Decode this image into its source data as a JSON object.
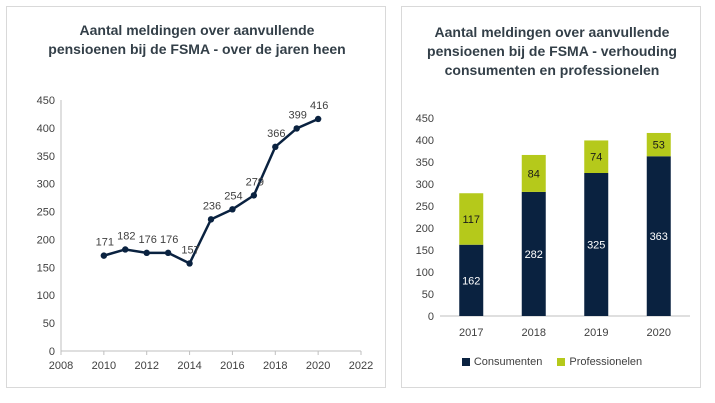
{
  "chart_data": [
    {
      "type": "line",
      "title": "Aantal meldingen over aanvullende pensioenen bij de FSMA - over de jaren heen",
      "x": [
        2010,
        2011,
        2012,
        2013,
        2014,
        2015,
        2016,
        2017,
        2018,
        2019,
        2020
      ],
      "series": [
        {
          "values": [
            171,
            182,
            176,
            176,
            157,
            236,
            254,
            279,
            366,
            399,
            416
          ],
          "color": "#0a2240"
        }
      ],
      "xlim": [
        2008,
        2022
      ],
      "xticks": [
        2008,
        2010,
        2012,
        2014,
        2016,
        2018,
        2020,
        2022
      ],
      "ylim": [
        0,
        450
      ],
      "yticks": [
        0,
        50,
        100,
        150,
        200,
        250,
        300,
        350,
        400,
        450
      ],
      "grid": false,
      "data_labels": true
    },
    {
      "type": "bar",
      "stacked": true,
      "title": "Aantal meldingen over aanvullende pensioenen bij de FSMA - verhouding consumenten en professionelen",
      "categories": [
        "2017",
        "2018",
        "2019",
        "2020"
      ],
      "series": [
        {
          "name": "Consumenten",
          "values": [
            162,
            282,
            325,
            363
          ],
          "color": "#0a2240",
          "label_color": "#ffffff"
        },
        {
          "name": "Professionelen",
          "values": [
            117,
            84,
            74,
            53
          ],
          "color": "#b5c91b",
          "label_color": "#1a1a1a"
        }
      ],
      "ylim": [
        0,
        450
      ],
      "yticks": [
        0,
        50,
        100,
        150,
        200,
        250,
        300,
        350,
        400,
        450
      ],
      "grid": false,
      "legend": "bottom"
    }
  ]
}
